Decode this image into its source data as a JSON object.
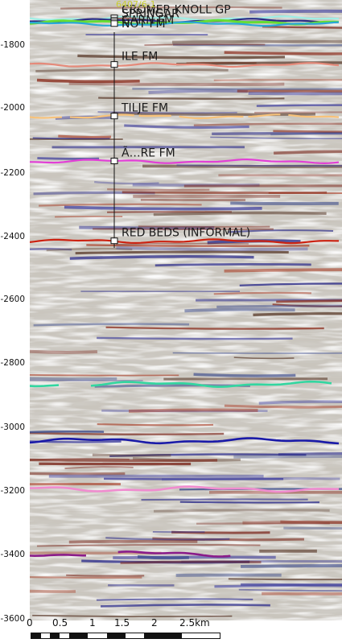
{
  "well": {
    "name": "6407/6-1"
  },
  "depth_axis": {
    "ticks": [
      "-1800",
      "-2000",
      "-2200",
      "-2400",
      "-2600",
      "-2800",
      "-3000",
      "-3200",
      "-3400",
      "-3600"
    ],
    "range": [
      -1735,
      -3600
    ]
  },
  "distance_axis": {
    "ticks": [
      "0",
      "0.5",
      "1",
      "1.5",
      "2",
      "2.5km"
    ]
  },
  "formations": [
    {
      "name": "CROMER KNOLL GP",
      "depth": -1790,
      "color": "#9fefe6"
    },
    {
      "name": "SPRINGAR",
      "depth": -1797,
      "color": "#2c2c84"
    },
    {
      "name": "GARN FM",
      "depth": -1802,
      "color": "#66dd33"
    },
    {
      "name": "NOT FM",
      "depth": -1807,
      "color": "#2aa8d8"
    },
    {
      "name": "ILE FM",
      "depth": -1930,
      "color": "#e58a7a"
    },
    {
      "name": "TILJE FM",
      "depth": -2085,
      "color": "#f7c27a"
    },
    {
      "name": "Ã…RE FM",
      "depth": -2220,
      "color": "#e23fd6"
    },
    {
      "name": "RED BEDS (INFORMAL)",
      "depth": -2460,
      "color": "#cc2211"
    }
  ],
  "horizons": [
    {
      "name": "green-horizon",
      "depth": -2890,
      "color": "#33d6a0"
    },
    {
      "name": "blue-horizon",
      "depth": -3060,
      "color": "#1a1aa8"
    },
    {
      "name": "pink-horizon",
      "depth": -3205,
      "color": "#f08ccf"
    },
    {
      "name": "purple-horizon",
      "depth": -3400,
      "color": "#8a1c8a"
    }
  ]
}
